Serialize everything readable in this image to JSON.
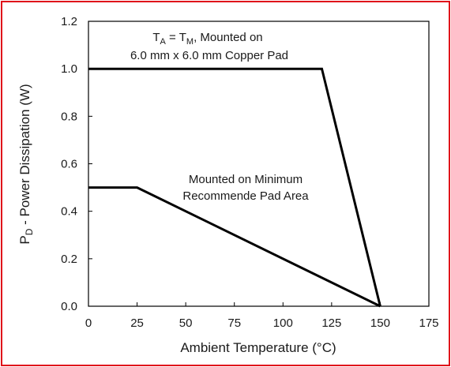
{
  "chart_data": {
    "type": "line",
    "xlabel": "Ambient Temperature (°C)",
    "ylabel": {
      "prefix": "P",
      "sub": "D",
      "rest": " - Power Dissipation (W)"
    },
    "xlim": [
      0,
      175
    ],
    "ylim": [
      0,
      1.2
    ],
    "xticks": [
      "0",
      "25",
      "50",
      "75",
      "100",
      "125",
      "150",
      "175"
    ],
    "yticks": [
      "0.0",
      "0.2",
      "0.4",
      "0.6",
      "0.8",
      "1.0",
      "1.2"
    ],
    "grid": false,
    "series": [
      {
        "x": [
          0,
          120,
          150
        ],
        "y": [
          1.0,
          1.0,
          0.0
        ]
      },
      {
        "x": [
          0,
          25,
          150
        ],
        "y": [
          0.5,
          0.5,
          0.0
        ]
      }
    ],
    "annotations": {
      "copper": {
        "line1": {
          "t": "T",
          "a": "A",
          "eq": " = T",
          "m": "M",
          "rest": ", Mounted on"
        },
        "line2": "6.0 mm x 6.0 mm Copper Pad"
      },
      "minimum": {
        "line1": "Mounted on Minimum",
        "line2": "Recommende Pad Area"
      }
    },
    "line_color": "#000000",
    "border_color": "#e0101a"
  }
}
